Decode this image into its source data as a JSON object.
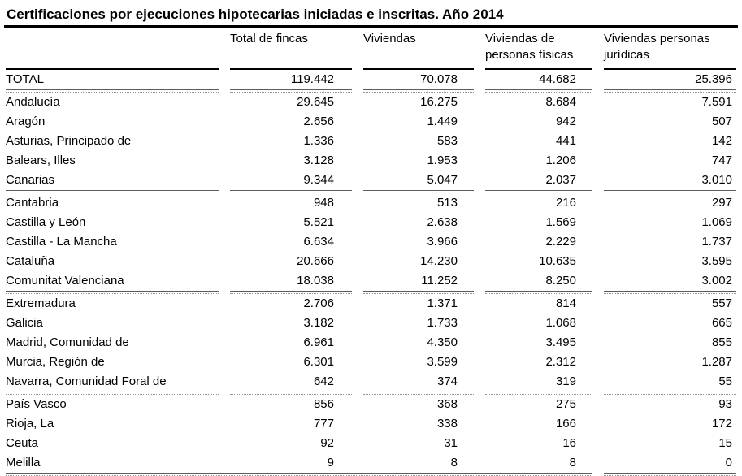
{
  "title": "Certificaciones por ejecuciones hipotecarias iniciadas e inscritas. Año 2014",
  "table": {
    "header": {
      "region": "",
      "col1": "Total de fincas",
      "col2": "Viviendas",
      "col3_line1": "Viviendas de",
      "col3_line2": "personas físicas",
      "col4_line1": "Viviendas personas",
      "col4_line2": "jurídicas"
    },
    "rows": [
      {
        "label": "TOTAL",
        "total_fincas": "119.442",
        "viviendas": "70.078",
        "viviendas_personas_fisicas": "44.682",
        "viviendas_personas_juridicas": "25.396",
        "separator_after": true
      },
      {
        "label": "Andalucía",
        "total_fincas": "29.645",
        "viviendas": "16.275",
        "viviendas_personas_fisicas": "8.684",
        "viviendas_personas_juridicas": "7.591",
        "separator_after": false
      },
      {
        "label": "Aragón",
        "total_fincas": "2.656",
        "viviendas": "1.449",
        "viviendas_personas_fisicas": "942",
        "viviendas_personas_juridicas": "507",
        "separator_after": false
      },
      {
        "label": "Asturias, Principado de",
        "total_fincas": "1.336",
        "viviendas": "583",
        "viviendas_personas_fisicas": "441",
        "viviendas_personas_juridicas": "142",
        "separator_after": false
      },
      {
        "label": "Balears, Illes",
        "total_fincas": "3.128",
        "viviendas": "1.953",
        "viviendas_personas_fisicas": "1.206",
        "viviendas_personas_juridicas": "747",
        "separator_after": false
      },
      {
        "label": "Canarias",
        "total_fincas": "9.344",
        "viviendas": "5.047",
        "viviendas_personas_fisicas": "2.037",
        "viviendas_personas_juridicas": "3.010",
        "separator_after": true
      },
      {
        "label": "Cantabria",
        "total_fincas": "948",
        "viviendas": "513",
        "viviendas_personas_fisicas": "216",
        "viviendas_personas_juridicas": "297",
        "separator_after": false
      },
      {
        "label": "Castilla y León",
        "total_fincas": "5.521",
        "viviendas": "2.638",
        "viviendas_personas_fisicas": "1.569",
        "viviendas_personas_juridicas": "1.069",
        "separator_after": false
      },
      {
        "label": "Castilla - La Mancha",
        "total_fincas": "6.634",
        "viviendas": "3.966",
        "viviendas_personas_fisicas": "2.229",
        "viviendas_personas_juridicas": "1.737",
        "separator_after": false
      },
      {
        "label": "Cataluña",
        "total_fincas": "20.666",
        "viviendas": "14.230",
        "viviendas_personas_fisicas": "10.635",
        "viviendas_personas_juridicas": "3.595",
        "separator_after": false
      },
      {
        "label": "Comunitat Valenciana",
        "total_fincas": "18.038",
        "viviendas": "11.252",
        "viviendas_personas_fisicas": "8.250",
        "viviendas_personas_juridicas": "3.002",
        "separator_after": true
      },
      {
        "label": "Extremadura",
        "total_fincas": "2.706",
        "viviendas": "1.371",
        "viviendas_personas_fisicas": "814",
        "viviendas_personas_juridicas": "557",
        "separator_after": false
      },
      {
        "label": "Galicia",
        "total_fincas": "3.182",
        "viviendas": "1.733",
        "viviendas_personas_fisicas": "1.068",
        "viviendas_personas_juridicas": "665",
        "separator_after": false
      },
      {
        "label": "Madrid, Comunidad de",
        "total_fincas": "6.961",
        "viviendas": "4.350",
        "viviendas_personas_fisicas": "3.495",
        "viviendas_personas_juridicas": "855",
        "separator_after": false
      },
      {
        "label": "Murcia, Región de",
        "total_fincas": "6.301",
        "viviendas": "3.599",
        "viviendas_personas_fisicas": "2.312",
        "viviendas_personas_juridicas": "1.287",
        "separator_after": false
      },
      {
        "label": "Navarra, Comunidad Foral de",
        "total_fincas": "642",
        "viviendas": "374",
        "viviendas_personas_fisicas": "319",
        "viviendas_personas_juridicas": "55",
        "separator_after": true
      },
      {
        "label": "País Vasco",
        "total_fincas": "856",
        "viviendas": "368",
        "viviendas_personas_fisicas": "275",
        "viviendas_personas_juridicas": "93",
        "separator_after": false
      },
      {
        "label": "Rioja, La",
        "total_fincas": "777",
        "viviendas": "338",
        "viviendas_personas_fisicas": "166",
        "viviendas_personas_juridicas": "172",
        "separator_after": false
      },
      {
        "label": "Ceuta",
        "total_fincas": "92",
        "viviendas": "31",
        "viviendas_personas_fisicas": "16",
        "viviendas_personas_juridicas": "15",
        "separator_after": false
      },
      {
        "label": "Melilla",
        "total_fincas": "9",
        "viviendas": "8",
        "viviendas_personas_fisicas": "8",
        "viviendas_personas_juridicas": "0",
        "separator_after": false
      }
    ]
  },
  "colors": {
    "text": "#000000",
    "strong_rule": "#000000",
    "group_rule_solid": "#5c5c5c",
    "group_rule_dotted": "#949494",
    "background": "#ffffff"
  }
}
